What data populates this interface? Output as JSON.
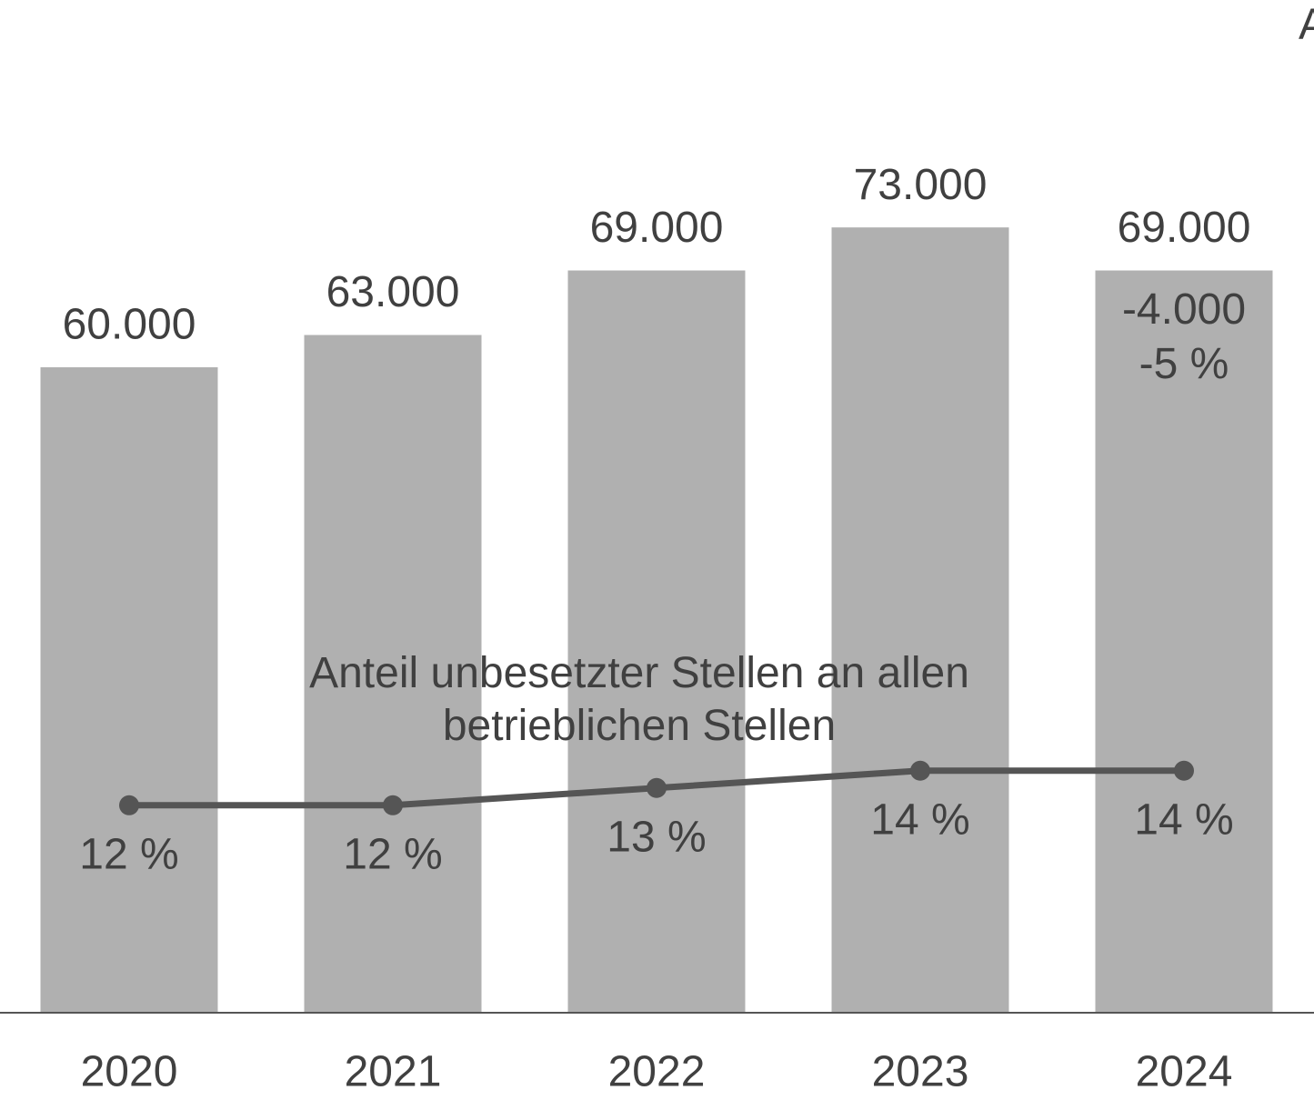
{
  "chart_data": {
    "type": "bar",
    "title": "A",
    "categories": [
      "2020",
      "2021",
      "2022",
      "2023",
      "2024"
    ],
    "values": [
      60000,
      63000,
      69000,
      73000,
      69000
    ],
    "value_labels": [
      "60.000",
      "63.000",
      "69.000",
      "73.000",
      "69.000"
    ],
    "color": "#b0b0b0",
    "ylim": [
      0,
      90000
    ],
    "series": [
      {
        "name": "Anteil unbesetzter Stellen an allen betrieblichen Stellen",
        "color": "#555555",
        "axis": "y2",
        "values": [
          12,
          12,
          13,
          14,
          14
        ],
        "value_labels": [
          "12 %",
          "12 %",
          "13 %",
          "14 %",
          "14 %"
        ]
      }
    ],
    "y2lim": [
      0,
      56
    ],
    "annotations": [
      "-4.000",
      "-5 %"
    ]
  }
}
